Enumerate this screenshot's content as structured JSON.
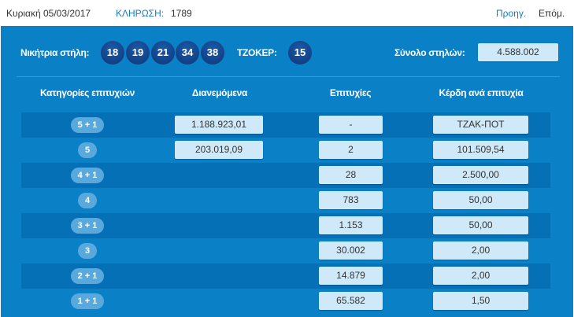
{
  "header": {
    "date": "Κυριακή 05/03/2017",
    "draw_label": "ΚΛΗΡΩΣΗ:",
    "draw_number": "1789",
    "prev": "Προηγ.",
    "next": "Επόμ."
  },
  "winning": {
    "label": "Νικήτρια στήλη:",
    "numbers": [
      "18",
      "19",
      "21",
      "34",
      "38"
    ],
    "joker_label": "ΤΖΟΚΕΡ:",
    "joker": "15",
    "total_label": "Σύνολο στηλών:",
    "total": "4.588.002"
  },
  "table": {
    "headers": [
      "Κατηγορίες επιτυχιών",
      "Διανεμόμενα",
      "Επιτυχίες",
      "Κέρδη ανά επιτυχία"
    ],
    "rows": [
      {
        "cat": "5 + 1",
        "dist": "1.188.923,01",
        "wins": "-",
        "prize": "ΤΖΑΚ-ΠΟΤ"
      },
      {
        "cat": "5",
        "dist": "203.019,09",
        "wins": "2",
        "prize": "101.509,54"
      },
      {
        "cat": "4 + 1",
        "dist": "",
        "wins": "28",
        "prize": "2.500,00"
      },
      {
        "cat": "4",
        "dist": "",
        "wins": "783",
        "prize": "50,00"
      },
      {
        "cat": "3 + 1",
        "dist": "",
        "wins": "1.153",
        "prize": "50,00"
      },
      {
        "cat": "3",
        "dist": "",
        "wins": "30.002",
        "prize": "2,00"
      },
      {
        "cat": "2 + 1",
        "dist": "",
        "wins": "14.879",
        "prize": "2,00"
      },
      {
        "cat": "1 + 1",
        "dist": "",
        "wins": "65.582",
        "prize": "1,50"
      }
    ]
  },
  "colors": {
    "panel": "#0a80c7",
    "accent": "#1a7ac2"
  }
}
